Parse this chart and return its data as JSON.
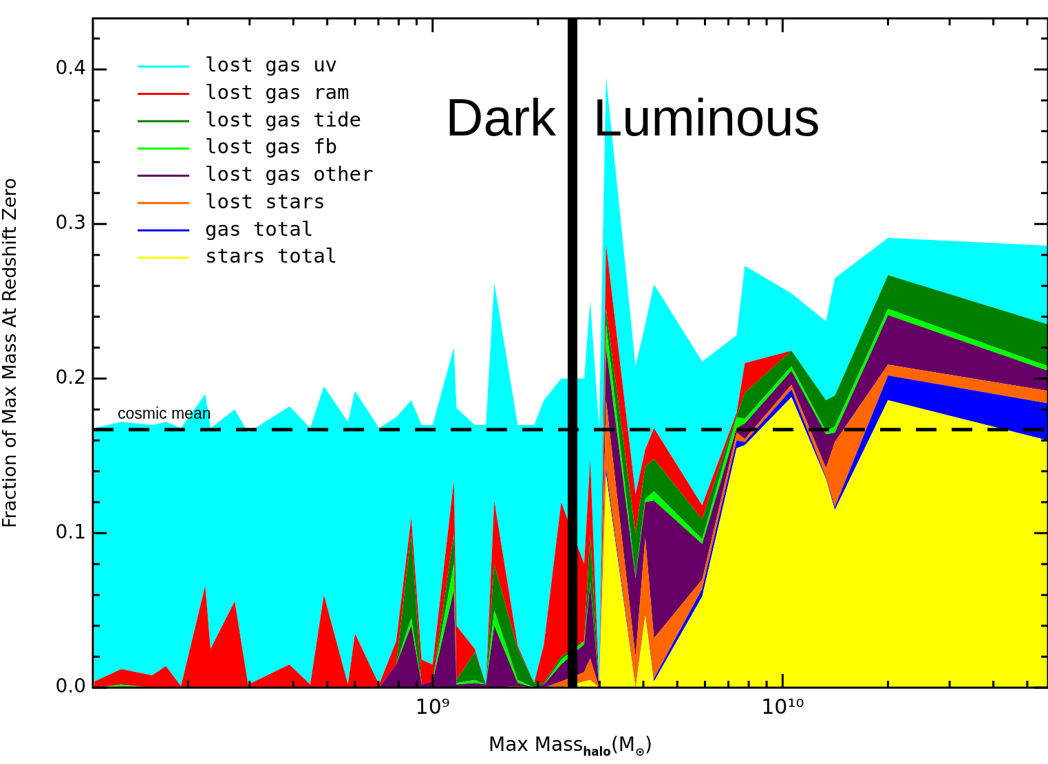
{
  "chart_data": {
    "type": "area",
    "stacked": true,
    "log": "x",
    "legend": "top left",
    "xlabel": "Max Mass$_{halo}$(M$_{⊙}$)",
    "ylabel": "Fraction of Max Mass At Redshift Zero",
    "x": [
      108000000.0,
      129000000.0,
      158000000.0,
      173000000.0,
      191000000.0,
      224000000.0,
      232000000.0,
      272000000.0,
      297000000.0,
      390000000.0,
      447000000.0,
      489000000.0,
      573000000.0,
      600000000.0,
      703000000.0,
      787000000.0,
      869000000.0,
      930000000.0,
      1000000000.0,
      1150000000.0,
      1170000000.0,
      1320000000.0,
      1420000000.0,
      1500000000.0,
      1750000000.0,
      1950000000.0,
      2080000000.0,
      2330000000.0,
      2710000000.0,
      2820000000.0,
      2990000000.0,
      3130000000.0,
      3800000000.0,
      4050000000.0,
      4290000000.0,
      5890000000.0,
      7390000000.0,
      7800000000.0,
      10600000000.0,
      13300000000.0,
      14100000000.0,
      20000000000.0,
      57300000000.0
    ],
    "series": [
      {
        "name": "stars total",
        "color": "#ffff00",
        "values": [
          0,
          0,
          0,
          0,
          0,
          0,
          0,
          0,
          0,
          0,
          0,
          0,
          0,
          0,
          0,
          0,
          0,
          0,
          0,
          0,
          0,
          0,
          0,
          0,
          0,
          0,
          0,
          0,
          0.004,
          0.005,
          0,
          0.138,
          0,
          0.047,
          0.004,
          0.059,
          0.155,
          0.157,
          0.188,
          0.135,
          0.115,
          0.186,
          0.16
        ]
      },
      {
        "name": "gas total",
        "color": "#0000ff",
        "values": [
          0,
          0,
          0,
          0,
          0,
          0,
          0,
          0,
          0,
          0,
          0,
          0,
          0,
          0,
          0,
          0,
          0,
          0,
          0,
          0,
          0,
          0,
          0,
          0,
          0,
          0,
          0,
          0,
          0,
          0,
          0,
          0.004,
          0.001,
          0.001,
          0.002,
          0.005,
          0.005,
          0.002,
          0.005,
          0.001,
          0.002,
          0.016,
          0.024
        ]
      },
      {
        "name": "lost stars",
        "color": "#ff6600",
        "values": [
          0,
          0,
          0,
          0,
          0,
          0,
          0,
          0,
          0,
          0,
          0,
          0,
          0,
          0,
          0,
          0,
          0,
          0,
          0,
          0,
          0,
          0,
          0,
          0,
          0.001,
          0,
          0,
          0.004,
          0.006,
          0.014,
          0,
          0.044,
          0.019,
          0.049,
          0.026,
          0.006,
          0.005,
          0.002,
          0.003,
          0.006,
          0.042,
          0.007,
          0.008
        ]
      },
      {
        "name": "lost gas other",
        "color": "#660066",
        "values": [
          0,
          0,
          0,
          0,
          0,
          0,
          0,
          0,
          0,
          0,
          0,
          0,
          0,
          0,
          0,
          0.015,
          0.04,
          0.002,
          0.004,
          0.063,
          0.002,
          0.003,
          0.002,
          0.04,
          0.002,
          0,
          0.002,
          0.011,
          0.018,
          0.048,
          0,
          0.034,
          0.051,
          0.023,
          0.089,
          0.023,
          0.003,
          0.01,
          0.009,
          0.022,
          0.006,
          0.032,
          0.013
        ]
      },
      {
        "name": "lost gas fb",
        "color": "#00ff00",
        "values": [
          0,
          0.002,
          0,
          0,
          0,
          0,
          0,
          0,
          0,
          0,
          0,
          0,
          0,
          0,
          0,
          0,
          0.005,
          0,
          0,
          0.017,
          0.001,
          0.002,
          0,
          0.01,
          0.002,
          0,
          0,
          0.003,
          0.002,
          0.001,
          0,
          0.015,
          0.001,
          0.002,
          0.006,
          0.003,
          0.007,
          0.003,
          0.003,
          0.002,
          0.004,
          0.004,
          0.003
        ]
      },
      {
        "name": "lost gas tide",
        "color": "#008000",
        "values": [
          0,
          0,
          0,
          0,
          0,
          0,
          0,
          0,
          0,
          0,
          0,
          0,
          0,
          0,
          0,
          0,
          0.055,
          0,
          0,
          0.02,
          0.002,
          0.018,
          0,
          0.03,
          0.02,
          0.003,
          0.001,
          0.002,
          0,
          0.031,
          0,
          0.01,
          0.028,
          0.021,
          0.021,
          0.013,
          0.001,
          0.017,
          0.01,
          0.02,
          0.02,
          0.022,
          0.027
        ]
      },
      {
        "name": "lost gas ram",
        "color": "#ff0000",
        "values": [
          0.004,
          0.01,
          0.008,
          0.014,
          0.001,
          0.066,
          0.025,
          0.056,
          0.002,
          0.015,
          0.002,
          0.06,
          0.002,
          0.035,
          0.002,
          0.015,
          0.01,
          0.016,
          0.011,
          0.034,
          0.035,
          0.002,
          0,
          0.041,
          0.002,
          0,
          0.025,
          0.1,
          0.05,
          0.049,
          0,
          0.042,
          0.025,
          0.011,
          0.02,
          0.009,
          0.002,
          0.019,
          0,
          0,
          0,
          0,
          0
        ]
      },
      {
        "name": "lost gas uv",
        "color": "#00ffff",
        "values": [
          0.164,
          0.16,
          0.162,
          0.158,
          0.167,
          0.124,
          0.143,
          0.124,
          0.163,
          0.167,
          0.166,
          0.135,
          0.17,
          0.157,
          0.166,
          0.145,
          0.076,
          0.152,
          0.155,
          0.086,
          0.141,
          0.145,
          0.168,
          0.141,
          0.143,
          0.167,
          0.158,
          0.08,
          0.12,
          0.102,
          0.168,
          0.108,
          0.083,
          0.081,
          0.093,
          0.093,
          0.05,
          0.063,
          0.037,
          0.051,
          0.076,
          0.024,
          0.051
        ]
      }
    ],
    "xlim": [
      107000000.0,
      57300000000.0
    ],
    "xticks": [
      {
        "value": 200000000.0,
        "label": null
      },
      {
        "value": 300000000.0,
        "label": null
      },
      {
        "value": 400000000.0,
        "label": null
      },
      {
        "value": 500000000.0,
        "label": null
      },
      {
        "value": 600000000.0,
        "label": null
      },
      {
        "value": 700000000.0,
        "label": null
      },
      {
        "value": 800000000.0,
        "label": null
      },
      {
        "value": 900000000.0,
        "label": null
      },
      {
        "value": 1000000000.0,
        "label": "10⁹"
      },
      {
        "value": 2000000000.0,
        "label": null
      },
      {
        "value": 3000000000.0,
        "label": null
      },
      {
        "value": 4000000000.0,
        "label": null
      },
      {
        "value": 5000000000.0,
        "label": null
      },
      {
        "value": 6000000000.0,
        "label": null
      },
      {
        "value": 7000000000.0,
        "label": null
      },
      {
        "value": 8000000000.0,
        "label": null
      },
      {
        "value": 9000000000.0,
        "label": null
      },
      {
        "value": 10000000000.0,
        "label": "10¹⁰"
      },
      {
        "value": 20000000000.0,
        "label": null
      },
      {
        "value": 30000000000.0,
        "label": null
      },
      {
        "value": 40000000000.0,
        "label": null
      },
      {
        "value": 50000000000.0,
        "label": null
      }
    ],
    "ylim": [
      0,
      0.433
    ],
    "yticks": [
      {
        "value": 0,
        "label": "0.0"
      },
      {
        "value": 0.02,
        "label": null
      },
      {
        "value": 0.04,
        "label": null
      },
      {
        "value": 0.06,
        "label": null
      },
      {
        "value": 0.08,
        "label": null
      },
      0.1,
      {
        "value": 0.12,
        "label": null
      },
      {
        "value": 0.14,
        "label": null
      },
      {
        "value": 0.16,
        "label": null
      },
      {
        "value": 0.18,
        "label": null
      },
      0.2,
      {
        "value": 0.22,
        "label": null
      },
      {
        "value": 0.24,
        "label": null
      },
      {
        "value": 0.26,
        "label": null
      },
      {
        "value": 0.28,
        "label": null
      },
      0.3,
      {
        "value": 0.32,
        "label": null
      },
      {
        "value": 0.34,
        "label": null
      },
      {
        "value": 0.36,
        "label": null
      },
      {
        "value": 0.38,
        "label": null
      },
      0.4,
      {
        "value": 0.42,
        "label": null
      }
    ],
    "ref_lines": [
      {
        "axis": "y",
        "value": 0.167,
        "label": "cosmic mean",
        "color": "#000000",
        "line_style": "dashed"
      },
      {
        "axis": "x",
        "value": 2510000000.0,
        "color": "#000000"
      }
    ],
    "annotations": [
      "Dark",
      "Luminous"
    ]
  }
}
